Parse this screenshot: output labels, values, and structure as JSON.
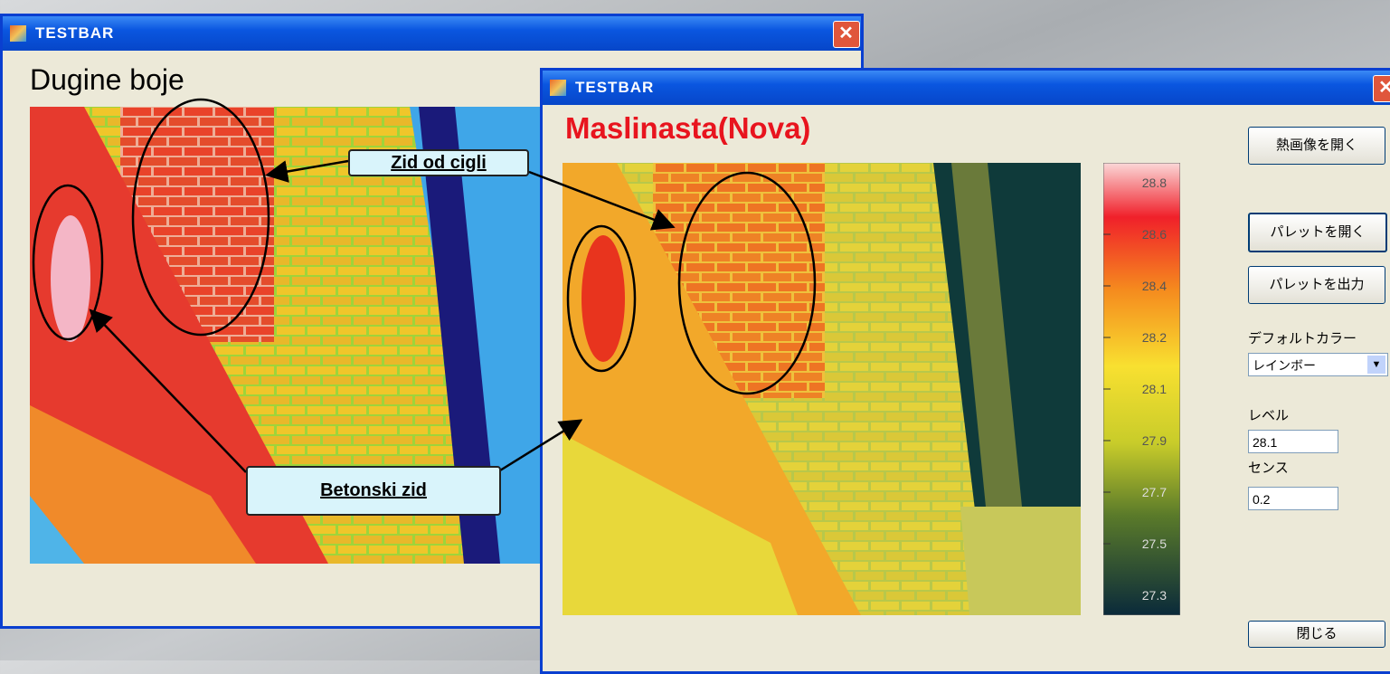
{
  "windows": [
    {
      "title": "TESTBAR",
      "heading": "Dugine boje"
    },
    {
      "title": "TESTBAR",
      "heading": "Maslinasta(Nova)",
      "scale_labels": [
        "28.8",
        "28.6",
        "28.4",
        "28.2",
        "28.1",
        "27.9",
        "27.7",
        "27.5",
        "27.3"
      ],
      "buttons": {
        "open_image": "熱画像を開く",
        "open_palette": "パレットを開く",
        "export_palette": "パレットを出力",
        "close": "閉じる"
      },
      "default_color": {
        "label": "デフォルトカラー",
        "value": "レインボー"
      },
      "level": {
        "label": "レベル",
        "value": "28.1"
      },
      "sense": {
        "label": "センス",
        "value": "0.2"
      }
    }
  ],
  "callouts": {
    "brick_wall": "Zid od cigli",
    "concrete_wall": "Betonski zid"
  }
}
